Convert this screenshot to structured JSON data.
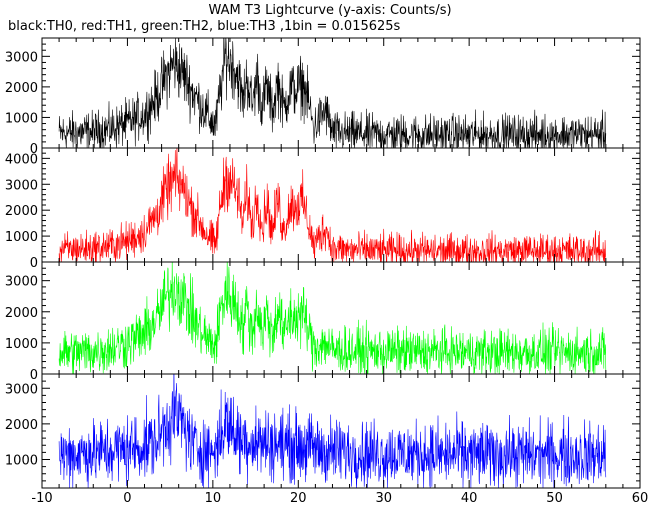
{
  "chart_data": {
    "type": "line",
    "title": "WAM T3 Lightcurve (y-axis: Counts/s)",
    "subtitle": "black:TH0, red:TH1, green:TH2, blue:TH3 ,1bin = 0.015625s",
    "xlabel": "",
    "ylabel": "",
    "bin_seconds": 0.015625,
    "xlim": [
      -10,
      60
    ],
    "x_ticks": [
      -10,
      0,
      10,
      20,
      30,
      40,
      50,
      60
    ],
    "x_minor_step": 2,
    "x_range": [
      -8,
      56
    ],
    "grid": false,
    "legend": "none",
    "panels": [
      {
        "name": "TH0",
        "color": "#000000",
        "ylim": [
          0,
          3600
        ],
        "y_ticks": [
          0,
          1000,
          2000,
          3000
        ],
        "profile": [
          [
            -8,
            480
          ],
          [
            -4,
            520
          ],
          [
            -2,
            620
          ],
          [
            0,
            820
          ],
          [
            2,
            1100
          ],
          [
            3.5,
            1700
          ],
          [
            4.5,
            2350
          ],
          [
            5.5,
            2800
          ],
          [
            6.5,
            2450
          ],
          [
            7.5,
            1900
          ],
          [
            8.5,
            1450
          ],
          [
            9.5,
            1000
          ],
          [
            10.3,
            700
          ],
          [
            10.9,
            1900
          ],
          [
            11.5,
            3050
          ],
          [
            12.3,
            2750
          ],
          [
            13,
            2300
          ],
          [
            13.5,
            1500
          ],
          [
            14,
            2350
          ],
          [
            14.6,
            1400
          ],
          [
            15.2,
            2350
          ],
          [
            15.8,
            1300
          ],
          [
            16.3,
            2050
          ],
          [
            17,
            1200
          ],
          [
            17.6,
            2200
          ],
          [
            18.3,
            1250
          ],
          [
            19,
            1950
          ],
          [
            19.8,
            1900
          ],
          [
            20.5,
            2100
          ],
          [
            21.2,
            1500
          ],
          [
            21.8,
            650
          ],
          [
            22.5,
            950
          ],
          [
            23.2,
            1250
          ],
          [
            24,
            500
          ],
          [
            30,
            440
          ],
          [
            40,
            430
          ],
          [
            50,
            440
          ],
          [
            56,
            440
          ]
        ],
        "noise": 360
      },
      {
        "name": "TH1",
        "color": "#ff0000",
        "ylim": [
          0,
          4400
        ],
        "y_ticks": [
          0,
          1000,
          2000,
          3000,
          4000
        ],
        "profile": [
          [
            -8,
            470
          ],
          [
            -4,
            520
          ],
          [
            -2,
            620
          ],
          [
            0,
            800
          ],
          [
            2,
            1150
          ],
          [
            3.5,
            1900
          ],
          [
            4.5,
            2700
          ],
          [
            5.5,
            3250
          ],
          [
            6.5,
            2850
          ],
          [
            7.5,
            2100
          ],
          [
            8.5,
            1500
          ],
          [
            9.5,
            950
          ],
          [
            10.3,
            650
          ],
          [
            10.9,
            2200
          ],
          [
            11.5,
            3350
          ],
          [
            12.3,
            3000
          ],
          [
            13,
            2500
          ],
          [
            13.5,
            1500
          ],
          [
            14,
            2650
          ],
          [
            14.6,
            1400
          ],
          [
            15.2,
            2650
          ],
          [
            15.8,
            1250
          ],
          [
            16.3,
            2350
          ],
          [
            17,
            1150
          ],
          [
            17.6,
            2450
          ],
          [
            18.3,
            1150
          ],
          [
            19,
            2200
          ],
          [
            19.8,
            2150
          ],
          [
            20.5,
            2350
          ],
          [
            21.2,
            1500
          ],
          [
            21.8,
            600
          ],
          [
            22.5,
            1000
          ],
          [
            23.2,
            1350
          ],
          [
            24,
            500
          ],
          [
            30,
            430
          ],
          [
            40,
            420
          ],
          [
            50,
            430
          ],
          [
            56,
            430
          ]
        ],
        "noise": 360
      },
      {
        "name": "TH2",
        "color": "#00ff00",
        "ylim": [
          0,
          3600
        ],
        "y_ticks": [
          0,
          1000,
          2000,
          3000
        ],
        "profile": [
          [
            -8,
            680
          ],
          [
            -4,
            720
          ],
          [
            -2,
            820
          ],
          [
            0,
            1000
          ],
          [
            2,
            1300
          ],
          [
            3.5,
            1800
          ],
          [
            4.5,
            2450
          ],
          [
            5.5,
            2850
          ],
          [
            6.5,
            2500
          ],
          [
            7.5,
            1900
          ],
          [
            8.5,
            1400
          ],
          [
            9.5,
            1050
          ],
          [
            10.3,
            900
          ],
          [
            10.9,
            2000
          ],
          [
            11.5,
            2700
          ],
          [
            12.3,
            2400
          ],
          [
            13,
            2050
          ],
          [
            13.5,
            1400
          ],
          [
            14,
            2200
          ],
          [
            14.6,
            1300
          ],
          [
            15.2,
            2250
          ],
          [
            15.8,
            1250
          ],
          [
            16.3,
            2000
          ],
          [
            17,
            1150
          ],
          [
            17.6,
            2200
          ],
          [
            18.3,
            1200
          ],
          [
            19,
            1850
          ],
          [
            19.8,
            1800
          ],
          [
            20.5,
            2000
          ],
          [
            21.2,
            1400
          ],
          [
            21.8,
            850
          ],
          [
            22.5,
            950
          ],
          [
            23.2,
            1000
          ],
          [
            24,
            760
          ],
          [
            30,
            720
          ],
          [
            40,
            690
          ],
          [
            50,
            700
          ],
          [
            56,
            700
          ]
        ],
        "noise": 380
      },
      {
        "name": "TH3",
        "color": "#0000ff",
        "ylim": [
          200,
          3400
        ],
        "y_ticks": [
          1000,
          2000,
          3000
        ],
        "profile": [
          [
            -8,
            1150
          ],
          [
            -4,
            1180
          ],
          [
            -2,
            1230
          ],
          [
            0,
            1300
          ],
          [
            2,
            1380
          ],
          [
            3.5,
            1550
          ],
          [
            4.5,
            2000
          ],
          [
            5.5,
            2350
          ],
          [
            6.5,
            2000
          ],
          [
            7.5,
            1450
          ],
          [
            8.5,
            1300
          ],
          [
            9.5,
            1220
          ],
          [
            10.3,
            1250
          ],
          [
            10.9,
            1700
          ],
          [
            11.5,
            2050
          ],
          [
            12.3,
            1850
          ],
          [
            13,
            1600
          ],
          [
            14,
            1550
          ],
          [
            15,
            1500
          ],
          [
            17,
            1450
          ],
          [
            19,
            1400
          ],
          [
            21,
            1350
          ],
          [
            23,
            1250
          ],
          [
            30,
            1150
          ],
          [
            40,
            1130
          ],
          [
            50,
            1130
          ],
          [
            56,
            1130
          ]
        ],
        "noise": 420
      }
    ]
  }
}
